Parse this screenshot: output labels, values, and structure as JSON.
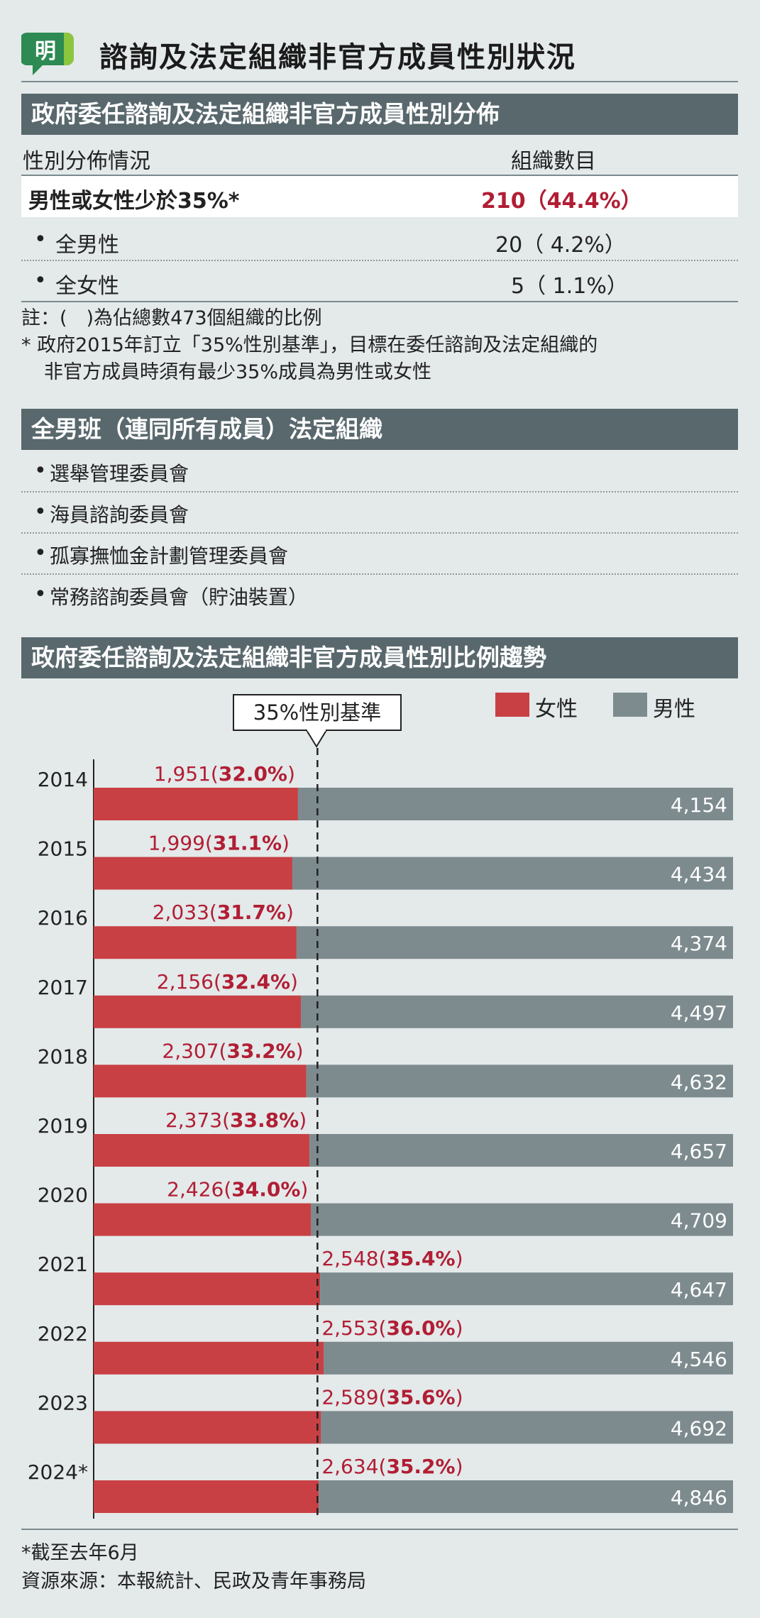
{
  "header": {
    "logo_char": "明",
    "title": "諮詢及法定組織非官方成員性別狀況"
  },
  "table1": {
    "heading": "政府委任諮詢及法定組織非官方成員性別分佈",
    "col1_header": "性別分佈情況",
    "col2_header": "組織數目",
    "rows": [
      {
        "label": "男性或女性少於35%*",
        "value": "210（44.4%）"
      },
      {
        "label": "全男性",
        "value": "20（  4.2%）"
      },
      {
        "label": "全女性",
        "value": "5（  1.1%）"
      }
    ],
    "notes": [
      "註：(　)為佔總數473個組織的比例",
      "* 政府2015年訂立「35%性別基準」，目標在委任諮詢及法定組織的",
      "非官方成員時須有最少35%成員為男性或女性"
    ]
  },
  "table2": {
    "heading": "全男班（連同所有成員）法定組織",
    "items": [
      "選舉管理委員會",
      "海員諮詢委員會",
      "孤寡撫恤金計劃管理委員會",
      "常務諮詢委員會（貯油裝置）"
    ]
  },
  "chart_section": {
    "heading": "政府委任諮詢及法定組織非官方成員性別比例趨勢",
    "benchmark_label": "35%性別基準",
    "legend_female": "女性",
    "legend_male": "男性"
  },
  "chart_data": {
    "type": "bar",
    "orientation": "horizontal-stacked",
    "categories": [
      "2014",
      "2015",
      "2016",
      "2017",
      "2018",
      "2019",
      "2020",
      "2021",
      "2022",
      "2023",
      "2024*"
    ],
    "series": [
      {
        "name": "女性",
        "values": [
          1951,
          1999,
          2033,
          2156,
          2307,
          2373,
          2426,
          2548,
          2553,
          2589,
          2634
        ],
        "labels": [
          "1,951",
          "1,999",
          "2,033",
          "2,156",
          "2,307",
          "2,373",
          "2,426",
          "2,548",
          "2,553",
          "2,589",
          "2,634"
        ],
        "percent_labels": [
          "32.0%",
          "31.1%",
          "31.7%",
          "32.4%",
          "33.2%",
          "33.8%",
          "34.0%",
          "35.4%",
          "36.0%",
          "35.6%",
          "35.2%"
        ]
      },
      {
        "name": "男性",
        "values": [
          4154,
          4434,
          4374,
          4497,
          4632,
          4657,
          4709,
          4647,
          4546,
          4692,
          4846
        ],
        "labels": [
          "4,154",
          "4,434",
          "4,374",
          "4,497",
          "4,632",
          "4,657",
          "4,709",
          "4,647",
          "4,546",
          "4,692",
          "4,846"
        ]
      }
    ],
    "benchmark_percent": 35,
    "colors": {
      "female": "#c84044",
      "male": "#7d8b8f",
      "female_text": "#b11e34"
    }
  },
  "footnotes": {
    "asterisk_note": "*截至去年6月",
    "source": "資源來源：本報統計、民政及青年事務局"
  }
}
